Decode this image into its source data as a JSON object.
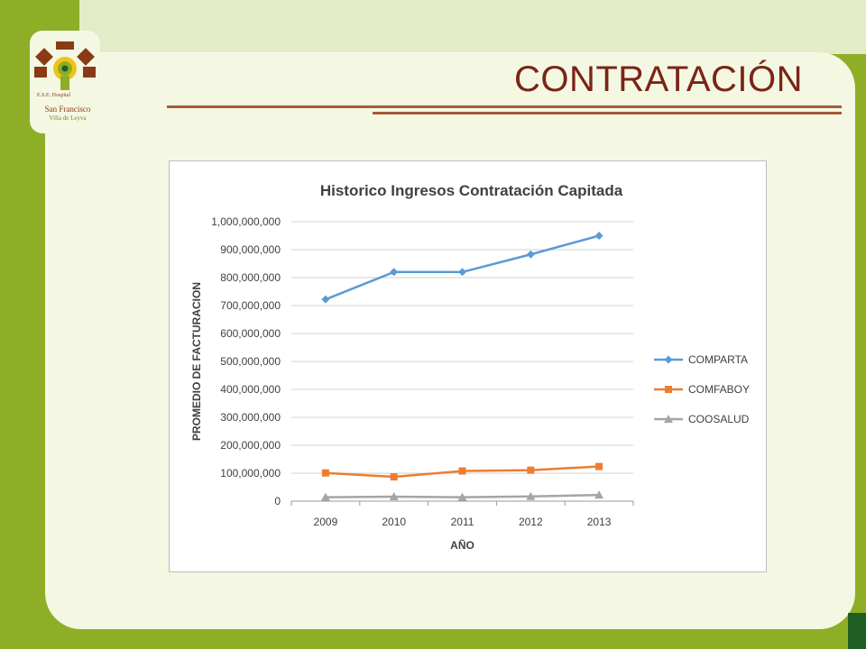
{
  "slide": {
    "title": "CONTRATACIÓN",
    "logo": {
      "line1": "E.S.E. Hospital",
      "line2": "San Francisco",
      "line3": "Villa de Leyva"
    }
  },
  "colors": {
    "background": "#8fae27",
    "panel": "#f4f8e3",
    "title": "#7a2517",
    "rule": "#a55a3a"
  },
  "chart_data": {
    "type": "line",
    "title": "Historico Ingresos Contratación Capitada",
    "xlabel": "AÑO",
    "ylabel": "PROMEDIO DE FACTURACION",
    "categories": [
      "2009",
      "2010",
      "2011",
      "2012",
      "2013"
    ],
    "ylim": [
      0,
      1000000000
    ],
    "yticks": [
      "0",
      "100,000,000",
      "200,000,000",
      "300,000,000",
      "400,000,000",
      "500,000,000",
      "600,000,000",
      "700,000,000",
      "800,000,000",
      "900,000,000",
      "1,000,000,000"
    ],
    "grid": true,
    "legend_position": "right",
    "series": [
      {
        "name": "COMPARTA",
        "color": "#5b9bd5",
        "marker": "diamond",
        "values": [
          722000000,
          820000000,
          820000000,
          883000000,
          950000000
        ]
      },
      {
        "name": "COMFABOY",
        "color": "#ed7d31",
        "marker": "square",
        "values": [
          101000000,
          87000000,
          108000000,
          111000000,
          124000000
        ]
      },
      {
        "name": "COOSALUD",
        "color": "#a5a5a5",
        "marker": "triangle",
        "values": [
          14000000,
          16000000,
          14000000,
          17000000,
          22000000
        ]
      }
    ]
  }
}
